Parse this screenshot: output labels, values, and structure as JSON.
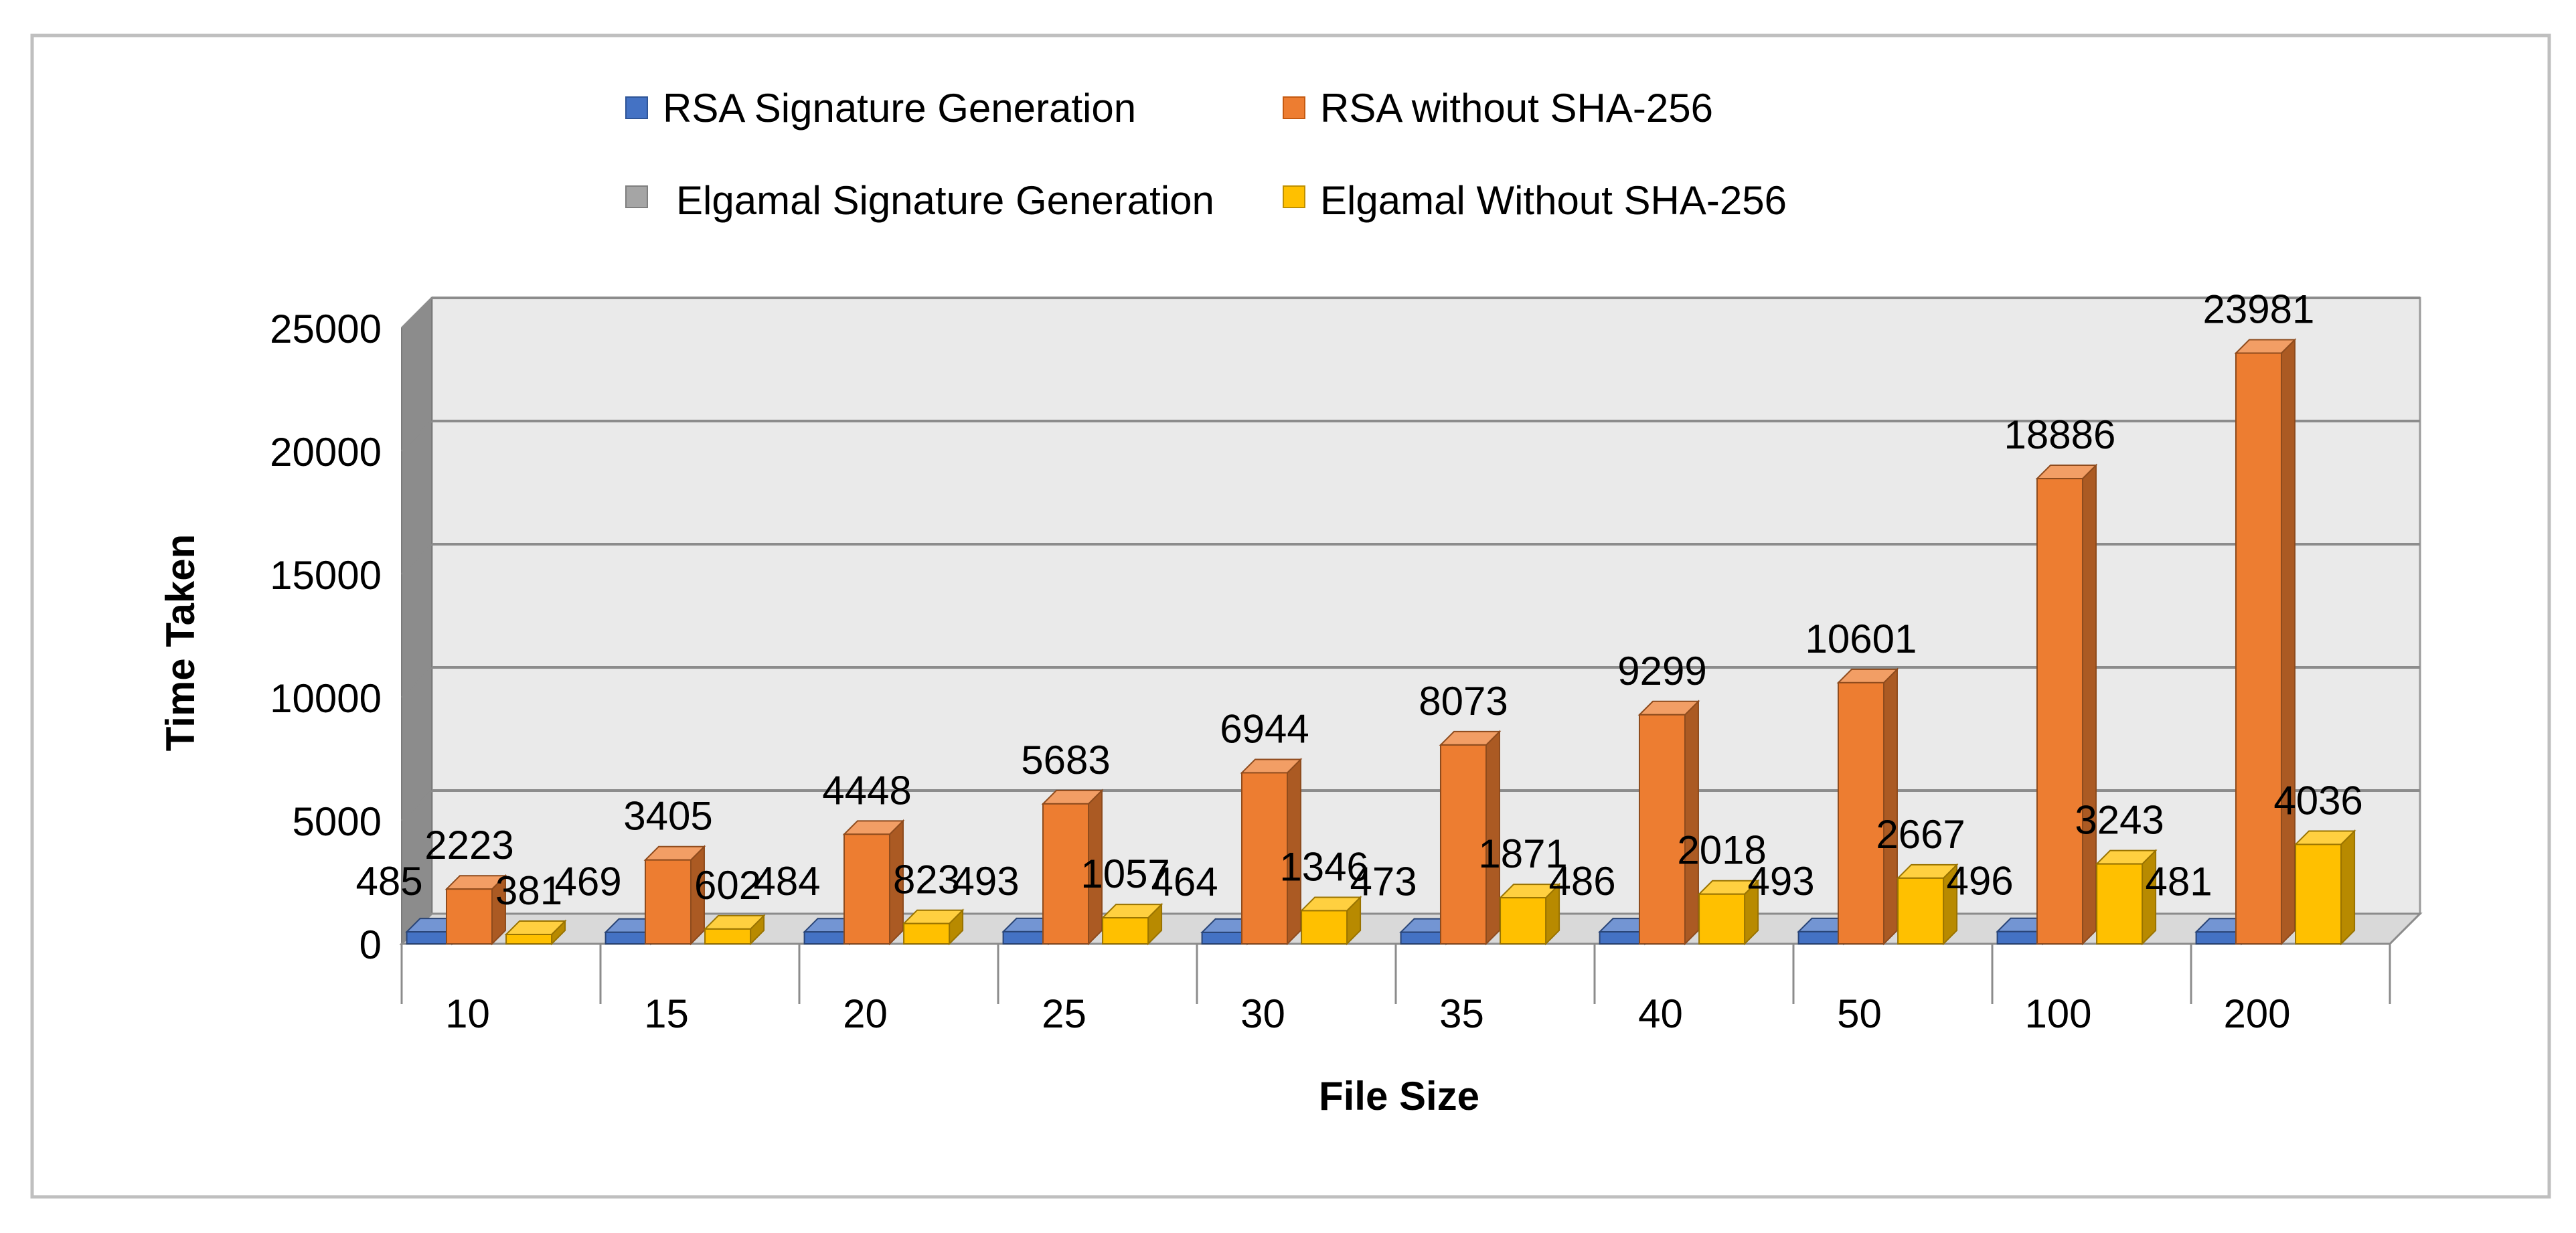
{
  "chart_data": {
    "type": "bar",
    "title": "",
    "xlabel": "File Size",
    "ylabel": "Time Taken",
    "ylim": [
      0,
      25000
    ],
    "yticks": [
      0,
      5000,
      10000,
      15000,
      20000,
      25000
    ],
    "ytick_labels": [
      "0",
      "5000",
      "10000",
      "15000",
      "20000",
      "25000"
    ],
    "categories": [
      "10",
      "15",
      "20",
      "25",
      "30",
      "35",
      "40",
      "50",
      "100",
      "200"
    ],
    "grid": true,
    "legend_position": "top",
    "series": [
      {
        "name": "RSA Signature Generation",
        "color": "#4472C4",
        "values": [
          485,
          469,
          484,
          493,
          464,
          473,
          486,
          493,
          496,
          481
        ],
        "labels": [
          "485",
          "469",
          "484",
          "493",
          "464",
          "473",
          "486",
          "493",
          "496",
          "481"
        ]
      },
      {
        "name": "RSA without SHA-256",
        "color": "#ED7D31",
        "values": [
          2223,
          3405,
          4448,
          5683,
          6944,
          8073,
          9299,
          10601,
          18886,
          23981
        ],
        "labels": [
          "2223",
          "3405",
          "4448",
          "5683",
          "6944",
          "8073",
          "9299",
          "10601",
          "18886",
          "23981"
        ]
      },
      {
        "name": "Elgamal Signature Generation",
        "color": "#A5A5A5",
        "values": [
          0,
          0,
          0,
          0,
          0,
          0,
          0,
          0,
          0,
          0
        ],
        "labels": [
          "",
          "",
          "",
          "",
          "",
          "",
          "",
          "",
          "",
          ""
        ]
      },
      {
        "name": "Elgamal Without SHA-256",
        "color": "#FFC000",
        "values": [
          381,
          602,
          823,
          1057,
          1346,
          1871,
          2018,
          2667,
          3243,
          4036
        ],
        "labels": [
          "381",
          "602",
          "823",
          "1057",
          "1346",
          "1871",
          "2018",
          "2667",
          "3243",
          "4036"
        ]
      }
    ]
  }
}
